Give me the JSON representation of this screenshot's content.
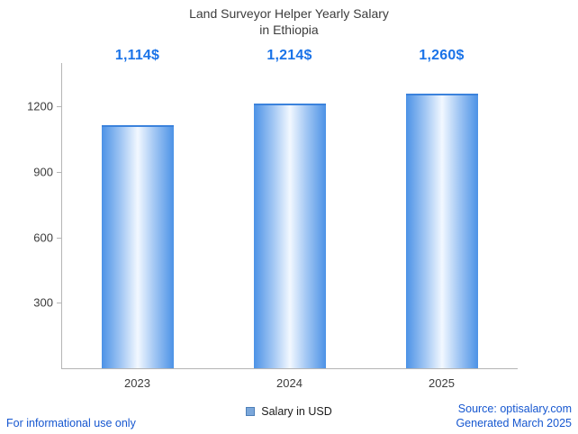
{
  "title_lines": [
    "Land Surveyor Helper Yearly Salary",
    "in Ethiopia"
  ],
  "chart_data": {
    "type": "bar",
    "title": "Land Surveyor Helper Yearly Salary in Ethiopia",
    "categories": [
      "2023",
      "2024",
      "2025"
    ],
    "values": [
      1114,
      1214,
      1260
    ],
    "value_labels": [
      "1,114$",
      "1,214$",
      "1,260$"
    ],
    "series_name": "Salary in USD",
    "ylim": [
      0,
      1400
    ],
    "yticks": [
      300,
      600,
      900,
      1200
    ],
    "grid": false,
    "legend_position": "bottom"
  },
  "legend": {
    "label": "Salary in USD"
  },
  "footer": {
    "disclaimer": "For informational use only",
    "source": "Source: optisalary.com",
    "generated": "Generated March 2025"
  },
  "colors": {
    "label_blue": "#1a73e8",
    "footer_blue": "#1657d0",
    "bar_edge": "#4c92e6",
    "bar_mid": "#a6c9f4",
    "bar_center": "#f2f8ff",
    "bar_top": "#3b82dc",
    "legend_marker": "#7ba7da",
    "legend_marker_border": "#4d7fb8",
    "axis": "#b5b5b5",
    "text_dark": "#3c3c3c"
  }
}
